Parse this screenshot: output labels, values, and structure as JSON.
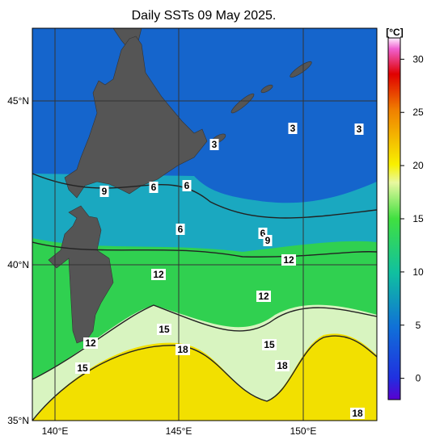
{
  "title": "Daily SSTs 09 May 2025.",
  "lat_labels": [
    "45°N",
    "40°N",
    "35°N"
  ],
  "lon_labels": [
    "140°E",
    "145°E",
    "150°E"
  ],
  "colorbar": {
    "unit": "[°C]",
    "range": [
      -2,
      32
    ],
    "ticks": [
      0,
      5,
      10,
      15,
      20,
      25,
      30
    ]
  },
  "contour_labels": [
    "3",
    "3",
    "3",
    "9",
    "6",
    "6",
    "6",
    "6",
    "9",
    "12",
    "12",
    "12",
    "15",
    "12",
    "18",
    "15",
    "15",
    "18",
    "18"
  ]
}
